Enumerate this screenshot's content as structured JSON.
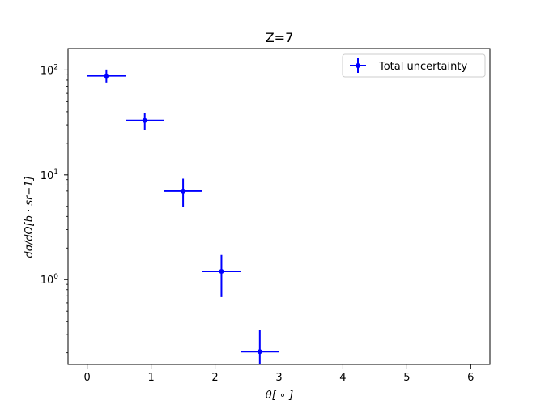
{
  "chart_data": {
    "type": "scatter",
    "title": "Z=7",
    "xlabel": "θ[ ∘ ]",
    "ylabel": "dσ/dΩ[b · sr−1]",
    "xlim": [
      -0.3,
      6.3
    ],
    "ylim": [
      0.155,
      160
    ],
    "yscale": "log",
    "x_ticks": [
      0,
      1,
      2,
      3,
      4,
      5,
      6
    ],
    "x_tick_labels": [
      "0",
      "1",
      "2",
      "3",
      "4",
      "5",
      "6"
    ],
    "y_ticks": [
      1,
      10,
      100
    ],
    "y_tick_labels": [
      {
        "base": "10",
        "exp": "0"
      },
      {
        "base": "10",
        "exp": "1"
      },
      {
        "base": "10",
        "exp": "2"
      }
    ],
    "legend_position": "top-right",
    "grid": false,
    "series": [
      {
        "name": "Total uncertainty",
        "color": "#0000ff",
        "marker": "circle",
        "points": [
          {
            "x": 0.3,
            "y": 88,
            "xerr": 0.3,
            "yerr_low": 12,
            "yerr_high": 13
          },
          {
            "x": 0.9,
            "y": 33,
            "xerr": 0.3,
            "yerr_low": 6,
            "yerr_high": 6
          },
          {
            "x": 1.5,
            "y": 7.0,
            "xerr": 0.3,
            "yerr_low": 2.1,
            "yerr_high": 2.2
          },
          {
            "x": 2.1,
            "y": 1.2,
            "xerr": 0.3,
            "yerr_low": 0.52,
            "yerr_high": 0.52
          },
          {
            "x": 2.7,
            "y": 0.205,
            "xerr": 0.3,
            "yerr_low": 0.05,
            "yerr_high": 0.125
          }
        ]
      }
    ]
  }
}
